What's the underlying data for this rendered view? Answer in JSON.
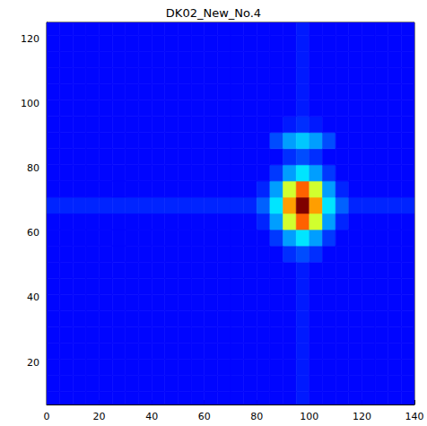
{
  "chart_data": {
    "type": "heatmap",
    "title": "DK02_New_No.4",
    "x": [
      2.5,
      7.5,
      12.5,
      17.5,
      22.5,
      27.5,
      32.5,
      37.5,
      42.5,
      47.5,
      52.5,
      57.5,
      62.5,
      67.5,
      72.5,
      77.5,
      82.5,
      87.5,
      92.5,
      97.5,
      102.5,
      107.5,
      112.5,
      117.5,
      122.5,
      127.5,
      132.5,
      137.5
    ],
    "y": [
      8.5,
      13.5,
      18.5,
      23.5,
      28.5,
      33.5,
      38.5,
      43.5,
      48.5,
      53.5,
      58.5,
      63.5,
      68.5,
      73.5,
      78.5,
      83.5,
      88.5,
      93.5,
      98.5,
      103.5,
      108.5,
      113.5,
      118.5,
      123.5
    ],
    "z": [
      [
        0.13,
        0.13,
        0.13,
        0.13,
        0.13,
        0.13,
        0.13,
        0.13,
        0.13,
        0.13,
        0.13,
        0.13,
        0.13,
        0.13,
        0.13,
        0.13,
        0.13,
        0.13,
        0.13,
        0.15,
        0.13,
        0.13,
        0.13,
        0.13,
        0.13,
        0.13,
        0.13,
        0.13
      ],
      [
        0.13,
        0.13,
        0.13,
        0.13,
        0.13,
        0.13,
        0.13,
        0.13,
        0.13,
        0.13,
        0.13,
        0.13,
        0.13,
        0.13,
        0.13,
        0.13,
        0.13,
        0.13,
        0.13,
        0.15,
        0.13,
        0.13,
        0.13,
        0.13,
        0.13,
        0.13,
        0.13,
        0.13
      ],
      [
        0.13,
        0.13,
        0.13,
        0.13,
        0.13,
        0.13,
        0.13,
        0.13,
        0.13,
        0.13,
        0.13,
        0.13,
        0.13,
        0.13,
        0.13,
        0.13,
        0.13,
        0.13,
        0.13,
        0.15,
        0.13,
        0.13,
        0.13,
        0.13,
        0.13,
        0.13,
        0.13,
        0.13
      ],
      [
        0.13,
        0.13,
        0.13,
        0.13,
        0.13,
        0.13,
        0.13,
        0.13,
        0.13,
        0.13,
        0.13,
        0.13,
        0.13,
        0.13,
        0.13,
        0.13,
        0.13,
        0.13,
        0.13,
        0.15,
        0.13,
        0.13,
        0.13,
        0.13,
        0.13,
        0.13,
        0.13,
        0.13
      ],
      [
        0.13,
        0.13,
        0.13,
        0.13,
        0.13,
        0.13,
        0.13,
        0.13,
        0.13,
        0.13,
        0.13,
        0.13,
        0.13,
        0.13,
        0.13,
        0.13,
        0.13,
        0.13,
        0.13,
        0.15,
        0.13,
        0.13,
        0.13,
        0.13,
        0.13,
        0.13,
        0.13,
        0.13
      ],
      [
        0.13,
        0.13,
        0.13,
        0.13,
        0.13,
        0.13,
        0.13,
        0.13,
        0.13,
        0.13,
        0.13,
        0.13,
        0.13,
        0.13,
        0.13,
        0.13,
        0.13,
        0.13,
        0.13,
        0.15,
        0.13,
        0.13,
        0.13,
        0.13,
        0.13,
        0.13,
        0.13,
        0.13
      ],
      [
        0.13,
        0.13,
        0.13,
        0.13,
        0.13,
        0.13,
        0.13,
        0.13,
        0.13,
        0.13,
        0.13,
        0.13,
        0.13,
        0.13,
        0.13,
        0.13,
        0.13,
        0.13,
        0.13,
        0.15,
        0.13,
        0.13,
        0.13,
        0.13,
        0.13,
        0.13,
        0.13,
        0.13
      ],
      [
        0.13,
        0.13,
        0.13,
        0.13,
        0.13,
        0.13,
        0.13,
        0.13,
        0.13,
        0.13,
        0.13,
        0.13,
        0.13,
        0.13,
        0.13,
        0.13,
        0.13,
        0.13,
        0.13,
        0.15,
        0.13,
        0.13,
        0.13,
        0.13,
        0.13,
        0.13,
        0.13,
        0.13
      ],
      [
        0.13,
        0.13,
        0.13,
        0.13,
        0.13,
        0.13,
        0.13,
        0.13,
        0.13,
        0.13,
        0.13,
        0.13,
        0.13,
        0.13,
        0.13,
        0.13,
        0.13,
        0.13,
        0.13,
        0.15,
        0.13,
        0.13,
        0.13,
        0.13,
        0.13,
        0.13,
        0.13,
        0.13
      ],
      [
        0.13,
        0.13,
        0.13,
        0.13,
        0.13,
        0.13,
        0.13,
        0.13,
        0.13,
        0.13,
        0.13,
        0.13,
        0.13,
        0.13,
        0.13,
        0.13,
        0.13,
        0.13,
        0.17,
        0.2,
        0.17,
        0.13,
        0.13,
        0.13,
        0.13,
        0.13,
        0.13,
        0.13
      ],
      [
        0.13,
        0.13,
        0.13,
        0.13,
        0.13,
        0.13,
        0.13,
        0.13,
        0.13,
        0.13,
        0.13,
        0.13,
        0.13,
        0.13,
        0.13,
        0.13,
        0.13,
        0.18,
        0.28,
        0.35,
        0.28,
        0.18,
        0.13,
        0.13,
        0.13,
        0.13,
        0.13,
        0.13
      ],
      [
        0.13,
        0.13,
        0.13,
        0.13,
        0.13,
        0.13,
        0.13,
        0.13,
        0.13,
        0.13,
        0.13,
        0.13,
        0.13,
        0.13,
        0.13,
        0.13,
        0.16,
        0.28,
        0.58,
        0.78,
        0.58,
        0.28,
        0.16,
        0.13,
        0.13,
        0.13,
        0.13,
        0.13
      ],
      [
        0.16,
        0.16,
        0.16,
        0.16,
        0.16,
        0.16,
        0.16,
        0.16,
        0.16,
        0.16,
        0.16,
        0.16,
        0.16,
        0.16,
        0.16,
        0.16,
        0.22,
        0.35,
        0.72,
        1.0,
        0.72,
        0.35,
        0.22,
        0.16,
        0.16,
        0.16,
        0.16,
        0.16
      ],
      [
        0.13,
        0.13,
        0.13,
        0.13,
        0.13,
        0.13,
        0.13,
        0.13,
        0.13,
        0.13,
        0.13,
        0.13,
        0.13,
        0.13,
        0.13,
        0.13,
        0.16,
        0.28,
        0.58,
        0.78,
        0.58,
        0.28,
        0.16,
        0.13,
        0.13,
        0.13,
        0.13,
        0.13
      ],
      [
        0.13,
        0.13,
        0.13,
        0.13,
        0.13,
        0.13,
        0.13,
        0.13,
        0.13,
        0.13,
        0.13,
        0.13,
        0.13,
        0.13,
        0.13,
        0.13,
        0.13,
        0.18,
        0.28,
        0.35,
        0.28,
        0.18,
        0.13,
        0.13,
        0.13,
        0.13,
        0.13,
        0.13
      ],
      [
        0.13,
        0.13,
        0.13,
        0.13,
        0.13,
        0.13,
        0.13,
        0.13,
        0.13,
        0.13,
        0.13,
        0.13,
        0.13,
        0.13,
        0.13,
        0.13,
        0.13,
        0.13,
        0.17,
        0.2,
        0.17,
        0.13,
        0.13,
        0.13,
        0.13,
        0.13,
        0.13,
        0.13
      ],
      [
        0.13,
        0.13,
        0.13,
        0.13,
        0.13,
        0.13,
        0.13,
        0.13,
        0.13,
        0.13,
        0.13,
        0.13,
        0.13,
        0.13,
        0.13,
        0.13,
        0.13,
        0.2,
        0.28,
        0.32,
        0.28,
        0.2,
        0.13,
        0.13,
        0.13,
        0.13,
        0.13,
        0.13
      ],
      [
        0.13,
        0.13,
        0.13,
        0.13,
        0.13,
        0.13,
        0.13,
        0.13,
        0.13,
        0.13,
        0.13,
        0.13,
        0.13,
        0.13,
        0.13,
        0.13,
        0.13,
        0.13,
        0.15,
        0.17,
        0.15,
        0.13,
        0.13,
        0.13,
        0.13,
        0.13,
        0.13,
        0.13
      ],
      [
        0.13,
        0.13,
        0.13,
        0.13,
        0.13,
        0.13,
        0.13,
        0.13,
        0.13,
        0.13,
        0.13,
        0.13,
        0.13,
        0.13,
        0.13,
        0.13,
        0.13,
        0.13,
        0.13,
        0.15,
        0.13,
        0.13,
        0.13,
        0.13,
        0.13,
        0.13,
        0.13,
        0.13
      ],
      [
        0.13,
        0.13,
        0.13,
        0.13,
        0.13,
        0.13,
        0.13,
        0.13,
        0.13,
        0.13,
        0.13,
        0.13,
        0.13,
        0.13,
        0.13,
        0.13,
        0.13,
        0.13,
        0.13,
        0.15,
        0.13,
        0.13,
        0.13,
        0.13,
        0.13,
        0.13,
        0.13,
        0.13
      ],
      [
        0.13,
        0.13,
        0.13,
        0.13,
        0.13,
        0.13,
        0.13,
        0.13,
        0.13,
        0.13,
        0.13,
        0.13,
        0.13,
        0.13,
        0.13,
        0.13,
        0.13,
        0.13,
        0.13,
        0.15,
        0.13,
        0.13,
        0.13,
        0.13,
        0.13,
        0.13,
        0.13,
        0.13
      ],
      [
        0.13,
        0.13,
        0.13,
        0.13,
        0.13,
        0.13,
        0.13,
        0.13,
        0.13,
        0.13,
        0.13,
        0.13,
        0.13,
        0.13,
        0.13,
        0.13,
        0.13,
        0.13,
        0.13,
        0.15,
        0.13,
        0.13,
        0.13,
        0.13,
        0.13,
        0.13,
        0.13,
        0.13
      ],
      [
        0.13,
        0.13,
        0.13,
        0.13,
        0.13,
        0.13,
        0.13,
        0.13,
        0.13,
        0.13,
        0.13,
        0.13,
        0.13,
        0.13,
        0.13,
        0.13,
        0.13,
        0.13,
        0.13,
        0.15,
        0.13,
        0.13,
        0.13,
        0.13,
        0.13,
        0.13,
        0.13,
        0.13
      ],
      [
        0.13,
        0.13,
        0.13,
        0.13,
        0.13,
        0.13,
        0.13,
        0.13,
        0.13,
        0.13,
        0.13,
        0.13,
        0.13,
        0.13,
        0.13,
        0.13,
        0.13,
        0.13,
        0.13,
        0.15,
        0.13,
        0.13,
        0.13,
        0.13,
        0.13,
        0.13,
        0.13,
        0.13
      ]
    ],
    "zlim": [
      0,
      1
    ],
    "xlim": [
      0,
      140
    ],
    "xticks": [
      0,
      20,
      40,
      60,
      80,
      100,
      120,
      140
    ],
    "ylim": [
      7,
      125
    ],
    "yticks": [
      20,
      40,
      60,
      80,
      100,
      120
    ],
    "grid": false
  }
}
